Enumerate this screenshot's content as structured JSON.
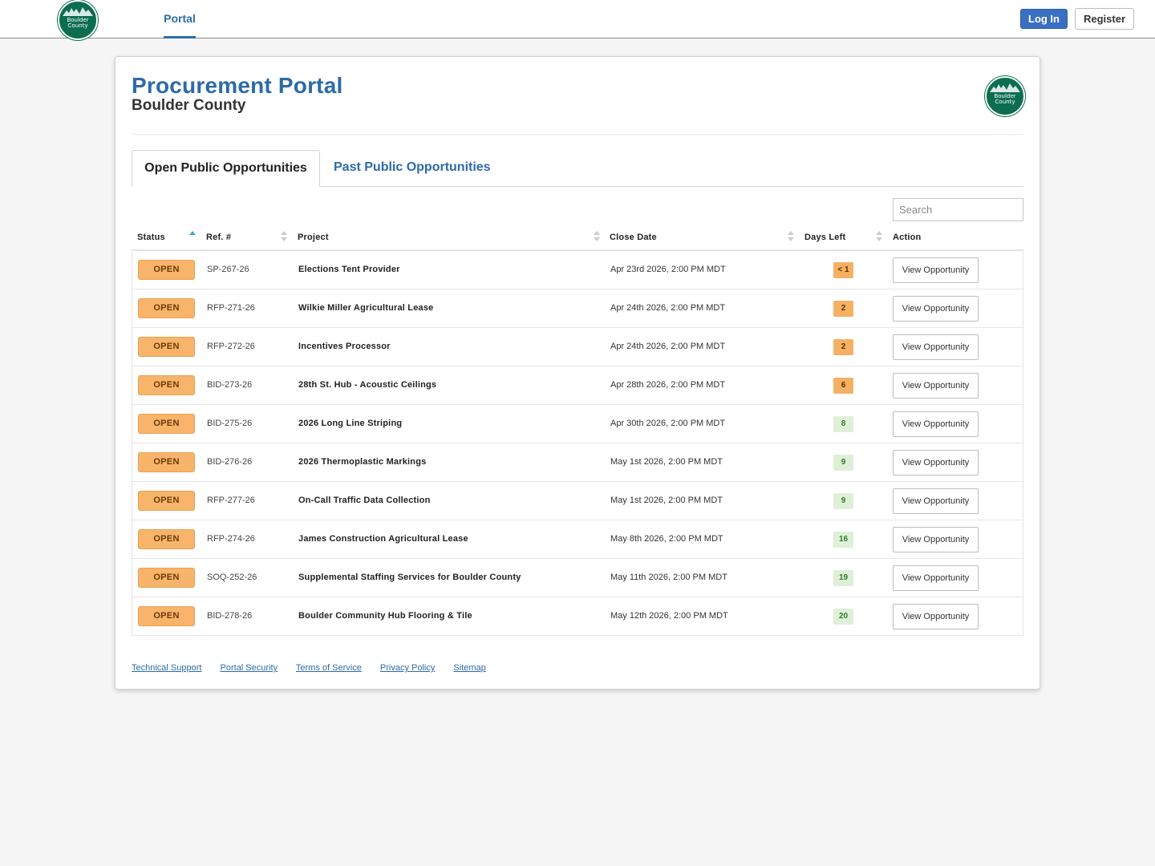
{
  "topbar": {
    "logo_text": "Boulder County",
    "nav_portal": "Portal",
    "login_label": "Log In",
    "register_label": "Register"
  },
  "header": {
    "title": "Procurement Portal",
    "subtitle": "Boulder County",
    "logo_text": "Boulder County"
  },
  "tabs": [
    {
      "label": "Open Public Opportunities",
      "active": true
    },
    {
      "label": "Past Public Opportunities",
      "active": false
    }
  ],
  "search": {
    "placeholder": "Search"
  },
  "table": {
    "columns": [
      "Status",
      "Ref. #",
      "Project",
      "Close Date",
      "Days Left",
      "Action"
    ],
    "sorted_column": "Status",
    "rows": [
      {
        "status": "OPEN",
        "ref": "SP-267-26",
        "project": "Elections Tent Provider",
        "close_date": "Apr 23rd 2026, 2:00 PM MDT",
        "days_left": "< 1",
        "days_style": "warn",
        "action": "View Opportunity"
      },
      {
        "status": "OPEN",
        "ref": "RFP-271-26",
        "project": "Wilkie Miller Agricultural Lease",
        "close_date": "Apr 24th 2026, 2:00 PM MDT",
        "days_left": "2",
        "days_style": "warn",
        "action": "View Opportunity"
      },
      {
        "status": "OPEN",
        "ref": "RFP-272-26",
        "project": "Incentives Processor",
        "close_date": "Apr 24th 2026, 2:00 PM MDT",
        "days_left": "2",
        "days_style": "warn",
        "action": "View Opportunity"
      },
      {
        "status": "OPEN",
        "ref": "BID-273-26",
        "project": "28th St. Hub - Acoustic Ceilings",
        "close_date": "Apr 28th 2026, 2:00 PM MDT",
        "days_left": "6",
        "days_style": "warn",
        "action": "View Opportunity"
      },
      {
        "status": "OPEN",
        "ref": "BID-275-26",
        "project": "2026 Long Line Striping",
        "close_date": "Apr 30th 2026, 2:00 PM MDT",
        "days_left": "8",
        "days_style": "ok",
        "action": "View Opportunity"
      },
      {
        "status": "OPEN",
        "ref": "BID-276-26",
        "project": "2026 Thermoplastic Markings",
        "close_date": "May 1st 2026, 2:00 PM MDT",
        "days_left": "9",
        "days_style": "ok",
        "action": "View Opportunity"
      },
      {
        "status": "OPEN",
        "ref": "RFP-277-26",
        "project": "On-Call Traffic Data Collection",
        "close_date": "May 1st 2026, 2:00 PM MDT",
        "days_left": "9",
        "days_style": "ok",
        "action": "View Opportunity"
      },
      {
        "status": "OPEN",
        "ref": "RFP-274-26",
        "project": "James Construction Agricultural Lease",
        "close_date": "May 8th 2026, 2:00 PM MDT",
        "days_left": "16",
        "days_style": "ok",
        "action": "View Opportunity"
      },
      {
        "status": "OPEN",
        "ref": "SOQ-252-26",
        "project": "Supplemental Staffing Services for Boulder County",
        "close_date": "May 11th 2026, 2:00 PM MDT",
        "days_left": "19",
        "days_style": "ok",
        "action": "View Opportunity"
      },
      {
        "status": "OPEN",
        "ref": "BID-278-26",
        "project": "Boulder Community Hub Flooring & Tile",
        "close_date": "May 12th 2026, 2:00 PM MDT",
        "days_left": "20",
        "days_style": "ok",
        "action": "View Opportunity"
      }
    ]
  },
  "footer": {
    "links": [
      "Technical Support",
      "Portal Security",
      "Terms of Service",
      "Privacy Policy",
      "Sitemap"
    ]
  },
  "colors": {
    "brand_blue": "#2d6aa8",
    "login_blue": "#3a70c2",
    "status_orange": "#f8b46a",
    "days_warn": "#f5b064",
    "days_ok": "#dff0d8",
    "seal_green": "#0c6e4f"
  }
}
